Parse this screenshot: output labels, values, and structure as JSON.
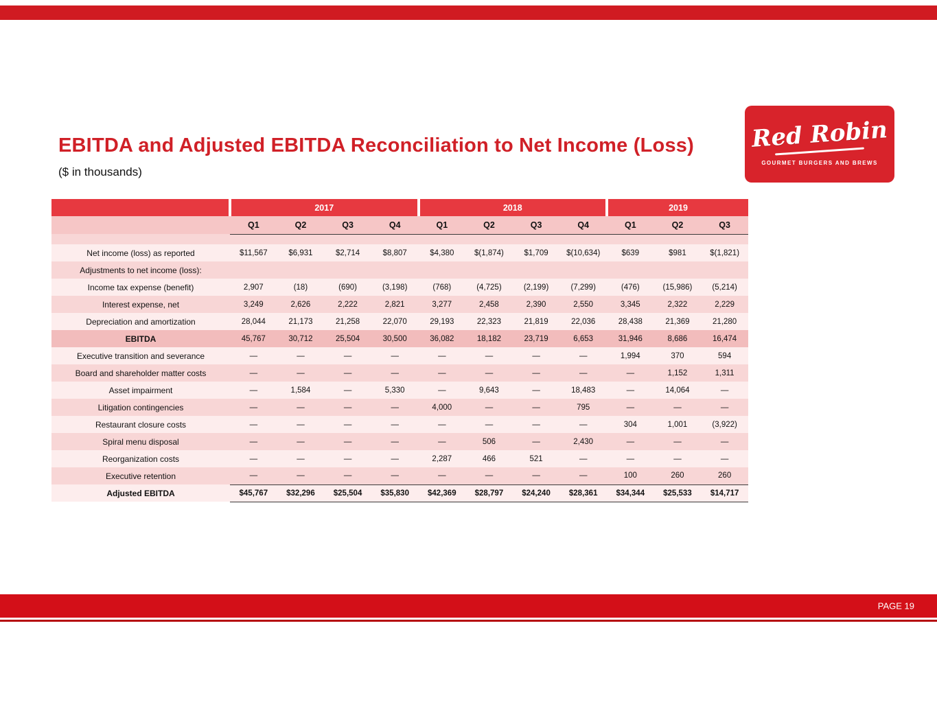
{
  "slide": {
    "title": "EBITDA and Adjusted EBITDA Reconciliation to Net Income (Loss)",
    "subtitle": "($ in thousands)",
    "page_label": "PAGE 19"
  },
  "logo": {
    "name": "Red Robin",
    "tagline": "GOURMET BURGERS AND BREWS"
  },
  "colors": {
    "brand_red": "#d02027",
    "table_header_red": "#e73940",
    "row_pink": "#f8d6d6",
    "row_light": "#fdeded",
    "ebitda_row_pink": "#f2bcbc",
    "footer_red": "#d30f18"
  },
  "chart_data": {
    "type": "table",
    "title": "EBITDA and Adjusted EBITDA Reconciliation to Net Income (Loss)",
    "units": "$ in thousands",
    "year_groups": [
      {
        "label": "2017",
        "quarters": [
          "Q1",
          "Q2",
          "Q3",
          "Q4"
        ]
      },
      {
        "label": "2018",
        "quarters": [
          "Q1",
          "Q2",
          "Q3",
          "Q4"
        ]
      },
      {
        "label": "2019",
        "quarters": [
          "Q1",
          "Q2",
          "Q3"
        ]
      }
    ],
    "columns": [
      "2017 Q1",
      "2017 Q2",
      "2017 Q3",
      "2017 Q4",
      "2018 Q1",
      "2018 Q2",
      "2018 Q3",
      "2018 Q4",
      "2019 Q1",
      "2019 Q2",
      "2019 Q3"
    ],
    "rows": [
      {
        "label": "Net income (loss) as reported",
        "style": "normal",
        "values": [
          "$11,567",
          "$6,931",
          "$2,714",
          "$8,807",
          "$4,380",
          "$(1,874)",
          "$1,709",
          "$(10,634)",
          "$639",
          "$981",
          "$(1,821)"
        ]
      },
      {
        "label": "Adjustments to net income (loss):",
        "style": "normal",
        "values": [
          "",
          "",
          "",
          "",
          "",
          "",
          "",
          "",
          "",
          "",
          ""
        ]
      },
      {
        "label": "Income tax expense (benefit)",
        "style": "normal",
        "values": [
          "2,907",
          "(18)",
          "(690)",
          "(3,198)",
          "(768)",
          "(4,725)",
          "(2,199)",
          "(7,299)",
          "(476)",
          "(15,986)",
          "(5,214)"
        ]
      },
      {
        "label": "Interest expense, net",
        "style": "normal",
        "values": [
          "3,249",
          "2,626",
          "2,222",
          "2,821",
          "3,277",
          "2,458",
          "2,390",
          "2,550",
          "3,345",
          "2,322",
          "2,229"
        ]
      },
      {
        "label": "Depreciation and amortization",
        "style": "normal",
        "values": [
          "28,044",
          "21,173",
          "21,258",
          "22,070",
          "29,193",
          "22,323",
          "21,819",
          "22,036",
          "28,438",
          "21,369",
          "21,280"
        ]
      },
      {
        "label": "EBITDA",
        "style": "subtotal",
        "values": [
          "45,767",
          "30,712",
          "25,504",
          "30,500",
          "36,082",
          "18,182",
          "23,719",
          "6,653",
          "31,946",
          "8,686",
          "16,474"
        ]
      },
      {
        "label": "Executive transition and severance",
        "style": "normal",
        "values": [
          "—",
          "—",
          "—",
          "—",
          "—",
          "—",
          "—",
          "—",
          "1,994",
          "370",
          "594"
        ]
      },
      {
        "label": "Board and shareholder matter costs",
        "style": "normal",
        "values": [
          "—",
          "—",
          "—",
          "—",
          "—",
          "—",
          "—",
          "—",
          "—",
          "1,152",
          "1,311"
        ]
      },
      {
        "label": "Asset impairment",
        "style": "normal",
        "values": [
          "—",
          "1,584",
          "—",
          "5,330",
          "—",
          "9,643",
          "—",
          "18,483",
          "—",
          "14,064",
          "—"
        ]
      },
      {
        "label": "Litigation contingencies",
        "style": "normal",
        "values": [
          "—",
          "—",
          "—",
          "—",
          "4,000",
          "—",
          "—",
          "795",
          "—",
          "—",
          "—"
        ]
      },
      {
        "label": "Restaurant closure costs",
        "style": "normal",
        "values": [
          "—",
          "—",
          "—",
          "—",
          "—",
          "—",
          "—",
          "—",
          "304",
          "1,001",
          "(3,922)"
        ]
      },
      {
        "label": "Spiral menu disposal",
        "style": "normal",
        "values": [
          "—",
          "—",
          "—",
          "—",
          "—",
          "506",
          "—",
          "2,430",
          "—",
          "—",
          "—"
        ]
      },
      {
        "label": "Reorganization costs",
        "style": "normal",
        "values": [
          "—",
          "—",
          "—",
          "—",
          "2,287",
          "466",
          "521",
          "—",
          "—",
          "—",
          "—"
        ]
      },
      {
        "label": "Executive retention",
        "style": "normal",
        "values": [
          "—",
          "—",
          "—",
          "—",
          "—",
          "—",
          "—",
          "—",
          "100",
          "260",
          "260"
        ]
      },
      {
        "label": "Adjusted EBITDA",
        "style": "total",
        "values": [
          "$45,767",
          "$32,296",
          "$25,504",
          "$35,830",
          "$42,369",
          "$28,797",
          "$24,240",
          "$28,361",
          "$34,344",
          "$25,533",
          "$14,717"
        ]
      }
    ]
  }
}
